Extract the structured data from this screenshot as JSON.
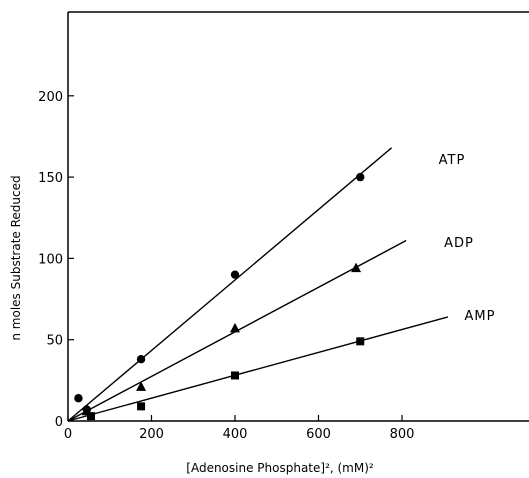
{
  "chart_data": {
    "type": "scatter",
    "title": "",
    "xlabel": "[Adenosine Phosphate]², (mM)²",
    "ylabel": "n moles Substrate Reduced",
    "xlim": [
      0,
      1000
    ],
    "ylim": [
      0,
      250
    ],
    "xticks": [
      0,
      200,
      400,
      600,
      800
    ],
    "yticks": [
      0,
      50,
      100,
      150,
      200
    ],
    "grid": false,
    "legend": "none",
    "series": [
      {
        "name": "ATP",
        "marker": "circle",
        "x": [
          25,
          45,
          175,
          400,
          700
        ],
        "y": [
          14,
          7,
          38,
          90,
          150
        ],
        "line": {
          "x": [
            0,
            775
          ],
          "y": [
            0,
            168
          ]
        }
      },
      {
        "name": "ADP",
        "marker": "triangle",
        "x": [
          45,
          175,
          400,
          690
        ],
        "y": [
          6,
          21,
          57,
          94
        ],
        "line": {
          "x": [
            0,
            810
          ],
          "y": [
            0,
            111
          ]
        }
      },
      {
        "name": "AMP",
        "marker": "square",
        "x": [
          55,
          175,
          400,
          700
        ],
        "y": [
          3,
          9,
          28,
          49
        ],
        "line": {
          "x": [
            0,
            910
          ],
          "y": [
            0,
            64
          ]
        }
      }
    ]
  }
}
